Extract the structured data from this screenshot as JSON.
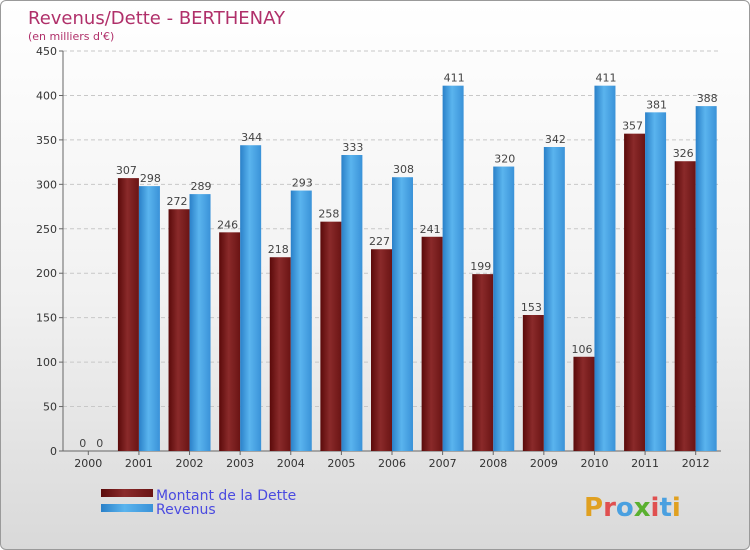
{
  "chart_data": {
    "type": "bar",
    "title": "Revenus/Dette - BERTHENAY",
    "subtitle": "(en milliers d'€)",
    "categories": [
      "2000",
      "2001",
      "2002",
      "2003",
      "2004",
      "2005",
      "2006",
      "2007",
      "2008",
      "2009",
      "2010",
      "2011",
      "2012"
    ],
    "series": [
      {
        "name": "Montant de la Dette",
        "color": "#7a1a1a",
        "values": [
          0,
          307,
          272,
          246,
          218,
          258,
          227,
          241,
          199,
          153,
          106,
          357,
          326
        ]
      },
      {
        "name": "Revenus",
        "color": "#3399dd",
        "values": [
          0,
          298,
          289,
          344,
          293,
          333,
          308,
          411,
          320,
          342,
          411,
          381,
          388
        ]
      }
    ],
    "ylim": [
      0,
      450
    ],
    "yticks": [
      0,
      50,
      100,
      150,
      200,
      250,
      300,
      350,
      400,
      450
    ],
    "grid": true,
    "legend_position": "bottom-left"
  },
  "branding": {
    "logo": "Proxiti"
  }
}
